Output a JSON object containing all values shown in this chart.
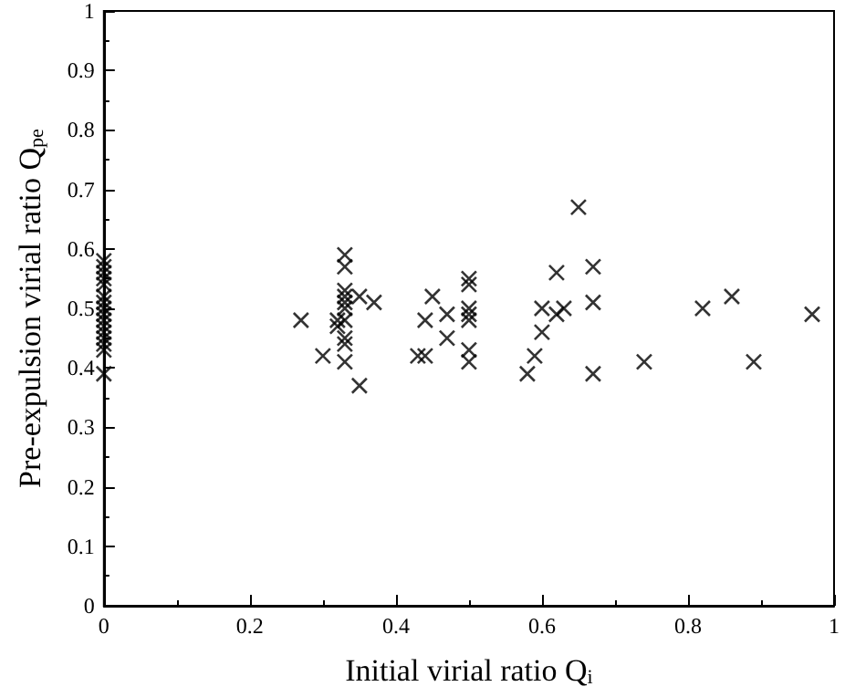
{
  "chart_data": {
    "type": "scatter",
    "xlabel": "Initial virial ratio Q$_{i}$",
    "ylabel": "Pre-expulsion virial ratio Q$_{pe}$",
    "marker": "cross",
    "grid": false,
    "xlim": [
      0,
      1
    ],
    "ylim": [
      0,
      1
    ],
    "xticks": [
      0,
      0.2,
      0.4,
      0.6,
      0.8,
      1
    ],
    "yticks": [
      0,
      0.1,
      0.2,
      0.3,
      0.4,
      0.5,
      0.6,
      0.7,
      0.8,
      0.9,
      1
    ],
    "series": [
      {
        "color": "#000000",
        "x": [
          0,
          0,
          0,
          0,
          0,
          0,
          0,
          0,
          0,
          0,
          0,
          0,
          0,
          0,
          0,
          0,
          0.27,
          0.3,
          0.32,
          0.32,
          0.33,
          0.33,
          0.33,
          0.33,
          0.33,
          0.33,
          0.33,
          0.33,
          0.33,
          0.33,
          0.35,
          0.35,
          0.37,
          0.43,
          0.44,
          0.44,
          0.45,
          0.47,
          0.47,
          0.5,
          0.5,
          0.5,
          0.5,
          0.5,
          0.5,
          0.5,
          0.58,
          0.59,
          0.6,
          0.6,
          0.62,
          0.62,
          0.63,
          0.65,
          0.67,
          0.67,
          0.67,
          0.74,
          0.82,
          0.86,
          0.89,
          0.97
        ],
        "values": [
          0.58,
          0.57,
          0.56,
          0.55,
          0.54,
          0.52,
          0.51,
          0.5,
          0.49,
          0.48,
          0.47,
          0.46,
          0.45,
          0.44,
          0.43,
          0.39,
          0.48,
          0.42,
          0.47,
          0.48,
          0.59,
          0.57,
          0.53,
          0.52,
          0.51,
          0.5,
          0.48,
          0.45,
          0.44,
          0.41,
          0.52,
          0.37,
          0.51,
          0.42,
          0.42,
          0.48,
          0.52,
          0.49,
          0.45,
          0.55,
          0.54,
          0.5,
          0.49,
          0.48,
          0.43,
          0.41,
          0.39,
          0.42,
          0.46,
          0.5,
          0.56,
          0.49,
          0.5,
          0.67,
          0.57,
          0.51,
          0.39,
          0.41,
          0.5,
          0.52,
          0.41,
          0.49
        ]
      }
    ]
  }
}
